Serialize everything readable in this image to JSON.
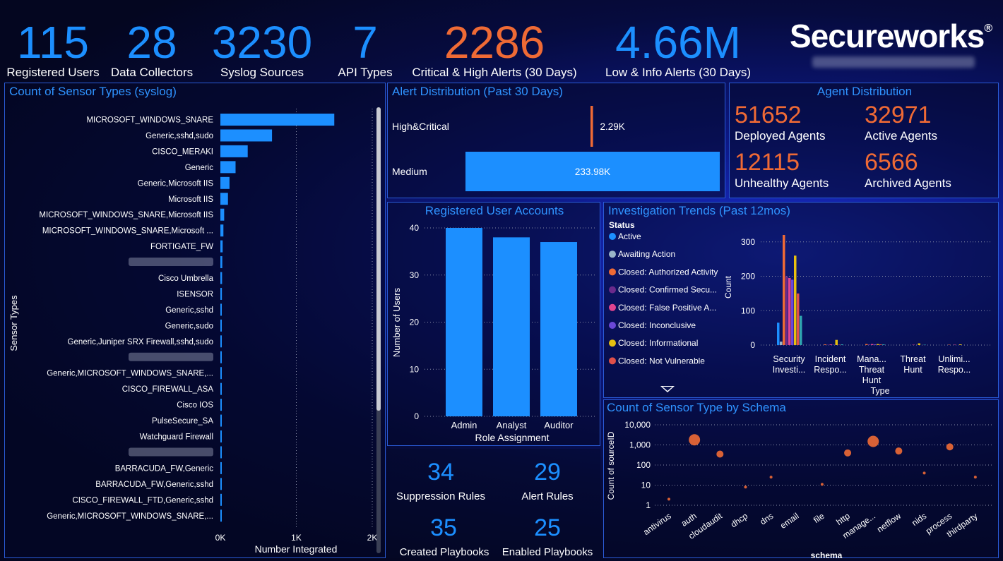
{
  "kpis": [
    {
      "value": "115",
      "label": "Registered Users"
    },
    {
      "value": "28",
      "label": "Data Collectors"
    },
    {
      "value": "3230",
      "label": "Syslog Sources"
    },
    {
      "value": "7",
      "label": "API Types"
    },
    {
      "value": "2286",
      "label": "Critical & High Alerts (30 Days)"
    },
    {
      "value": "4.66M",
      "label": "Low & Info Alerts (30 Days)"
    }
  ],
  "logo": {
    "text": "Secureworks",
    "mark": "®"
  },
  "colors": {
    "accent": "#1c8fff",
    "orange": "#ef6a35",
    "panel_border": "#2a5bd6"
  },
  "panels": {
    "sensor_types": "Count of Sensor Types (syslog)",
    "alert_dist": "Alert Distribution (Past 30 Days)",
    "agent_dist": "Agent Distribution",
    "user_accounts": "Registered User Accounts",
    "investigation": "Investigation Trends (Past 12mos)",
    "schema": "Count of Sensor Type by Schema"
  },
  "agents": [
    {
      "value": "51652",
      "label": "Deployed Agents"
    },
    {
      "value": "32971",
      "label": "Active Agents"
    },
    {
      "value": "12115",
      "label": "Unhealthy Agents"
    },
    {
      "value": "6566",
      "label": "Archived Agents"
    }
  ],
  "rules": [
    {
      "value": "34",
      "label": "Suppression Rules"
    },
    {
      "value": "29",
      "label": "Alert Rules"
    },
    {
      "value": "35",
      "label": "Created Playbooks"
    },
    {
      "value": "25",
      "label": "Enabled Playbooks"
    }
  ],
  "chart_data": [
    {
      "type": "bar",
      "orientation": "horizontal",
      "title": "Count of Sensor Types (syslog)",
      "xlabel": "Number Integrated",
      "ylabel": "Sensor Types",
      "xlim": [
        0,
        2000
      ],
      "xticks": [
        "0K",
        "1K",
        "2K"
      ],
      "categories": [
        "MICROSOFT_WINDOWS_SNARE",
        "Generic,sshd,sudo",
        "CISCO_MERAKI",
        "Generic",
        "Generic,Microsoft IIS",
        "Microsoft IIS",
        "MICROSOFT_WINDOWS_SNARE,Microsoft IIS",
        "MICROSOFT_WINDOWS_SNARE,Microsoft ...",
        "FORTIGATE_FW",
        "",
        "Cisco Umbrella",
        "ISENSOR",
        "Generic,sshd",
        "Generic,sudo",
        "Generic,Juniper SRX Firewall,sshd,sudo",
        "",
        "Generic,MICROSOFT_WINDOWS_SNARE,...",
        "CISCO_FIREWALL_ASA",
        "Cisco IOS",
        "PulseSecure_SA",
        "Watchguard Firewall",
        "",
        "BARRACUDA_FW,Generic",
        "BARRACUDA_FW,Generic,sshd",
        "CISCO_FIREWALL_FTD,Generic,sshd",
        "Generic,MICROSOFT_WINDOWS_SNARE,..."
      ],
      "values": [
        1500,
        680,
        360,
        200,
        120,
        100,
        50,
        40,
        30,
        25,
        22,
        20,
        18,
        17,
        16,
        15,
        14,
        13,
        12,
        11,
        10,
        9,
        8,
        8,
        7,
        6
      ],
      "color": "#1c8fff"
    },
    {
      "type": "bar",
      "orientation": "horizontal",
      "title": "Alert Distribution (Past 30 Days)",
      "categories": [
        "High&Critical",
        "Medium"
      ],
      "values": [
        2290,
        233980
      ],
      "labels": [
        "2.29K",
        "233.98K"
      ],
      "colors": [
        "#ef6a35",
        "#1c8fff"
      ]
    },
    {
      "type": "bar",
      "title": "Registered User Accounts",
      "xlabel": "Role Assignment",
      "ylabel": "Number of Users",
      "ylim": [
        0,
        40
      ],
      "yticks": [
        0,
        10,
        20,
        30,
        40
      ],
      "categories": [
        "Admin",
        "Analyst",
        "Auditor"
      ],
      "values": [
        40,
        38,
        37
      ],
      "color": "#1c8fff"
    },
    {
      "type": "bar",
      "title": "Investigation Trends (Past 12mos)",
      "xlabel": "Type",
      "ylabel": "Count",
      "ylim": [
        0,
        320
      ],
      "yticks": [
        0,
        100,
        200,
        300
      ],
      "legend_title": "Status",
      "legend_position": "left",
      "categories": [
        "Security Investi...",
        "Incident Respo...",
        "Mana... Threat Hunt",
        "Threat Hunt",
        "Unlimi... Respo..."
      ],
      "series": [
        {
          "name": "Active",
          "color": "#1c8fff",
          "values": [
            65,
            0,
            0,
            0,
            0
          ]
        },
        {
          "name": "Awaiting Action",
          "color": "#9ab5c9",
          "values": [
            10,
            0,
            0,
            0,
            0
          ]
        },
        {
          "name": "Closed: Authorized Activity",
          "color": "#ef6a35",
          "values": [
            320,
            2,
            3,
            0,
            1
          ]
        },
        {
          "name": "Closed: Confirmed Secu...",
          "color": "#6a2a8c",
          "values": [
            200,
            1,
            2,
            0,
            0
          ]
        },
        {
          "name": "Closed: False Positive A...",
          "color": "#e0448f",
          "values": [
            195,
            2,
            3,
            1,
            1
          ]
        },
        {
          "name": "Closed: Inconclusive",
          "color": "#6b48d6",
          "values": [
            190,
            1,
            2,
            0,
            0
          ]
        },
        {
          "name": "Closed: Informational",
          "color": "#e7c010",
          "values": [
            260,
            15,
            3,
            5,
            2
          ]
        },
        {
          "name": "Closed: Not Vulnerable",
          "color": "#e0504a",
          "values": [
            150,
            1,
            2,
            0,
            0
          ]
        },
        {
          "name": "",
          "color": "#2fa6b0",
          "values": [
            85,
            2,
            2,
            1,
            0
          ]
        }
      ]
    },
    {
      "type": "scatter",
      "title": "Count of Sensor Type by Schema",
      "xlabel": "schema",
      "ylabel": "Count of sourceID",
      "yscale": "log",
      "ylim": [
        1,
        10000
      ],
      "yticks": [
        "1",
        "10",
        "100",
        "1,000",
        "10,000"
      ],
      "categories": [
        "antivirus",
        "auth",
        "cloudaudit",
        "dhcp",
        "dns",
        "email",
        "file",
        "http",
        "manage...",
        "netflow",
        "nids",
        "process",
        "thirdparty"
      ],
      "values": [
        2,
        1800,
        350,
        8,
        25,
        0,
        11,
        400,
        1500,
        500,
        40,
        800,
        25
      ],
      "color": "#ef6a35"
    }
  ]
}
